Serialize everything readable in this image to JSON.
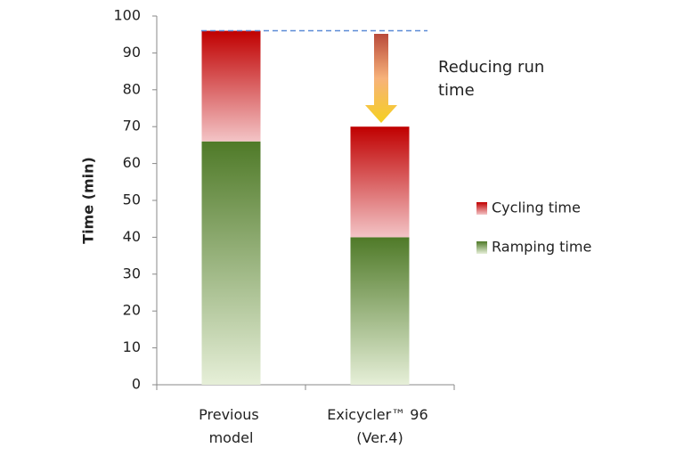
{
  "chart_data": {
    "type": "stacked-bar",
    "y_label": "Time (min)",
    "categories": [
      "Previous model",
      "Exicycler™ 96 (Ver.4)"
    ],
    "series": [
      {
        "name": "Ramping time",
        "color": "#4f7a28",
        "values": [
          66,
          40
        ]
      },
      {
        "name": "Cycling time",
        "color": "#c00000",
        "values": [
          30,
          30
        ]
      }
    ],
    "annotation": "Reducing run time",
    "ylim": [
      0,
      100
    ],
    "yticks": [
      0,
      10,
      20,
      30,
      40,
      50,
      60,
      70,
      80,
      90,
      100
    ]
  }
}
